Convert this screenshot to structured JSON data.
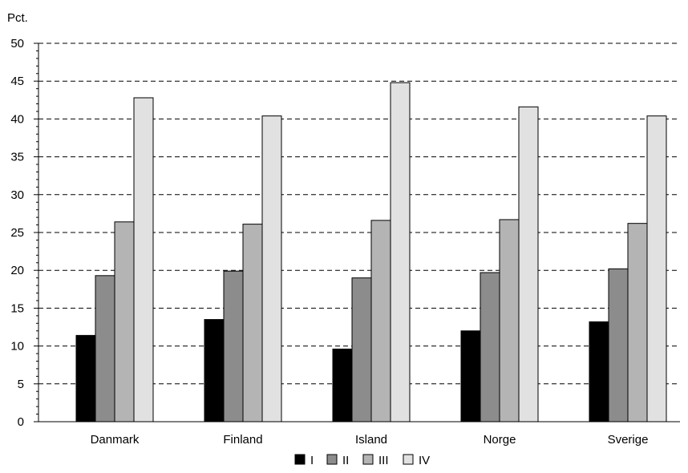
{
  "chart_data": {
    "type": "bar",
    "y_unit_label": "Pct.",
    "categories": [
      "Danmark",
      "Finland",
      "Island",
      "Norge",
      "Sverige"
    ],
    "series": [
      {
        "name": "I",
        "color": "#000000",
        "values": [
          11.4,
          13.5,
          9.6,
          12.0,
          13.2
        ]
      },
      {
        "name": "II",
        "color": "#8c8c8c",
        "values": [
          19.3,
          19.9,
          19.0,
          19.7,
          20.2
        ]
      },
      {
        "name": "III",
        "color": "#b4b4b4",
        "values": [
          26.4,
          26.1,
          26.6,
          26.7,
          26.2
        ]
      },
      {
        "name": "IV",
        "color": "#e1e1e1",
        "values": [
          42.8,
          40.4,
          44.8,
          41.6,
          40.4
        ]
      }
    ],
    "ylim": [
      0,
      50
    ],
    "yticks": [
      0,
      5,
      10,
      15,
      20,
      25,
      30,
      35,
      40,
      45,
      50
    ],
    "grid": true,
    "legend_position": "bottom-center"
  }
}
